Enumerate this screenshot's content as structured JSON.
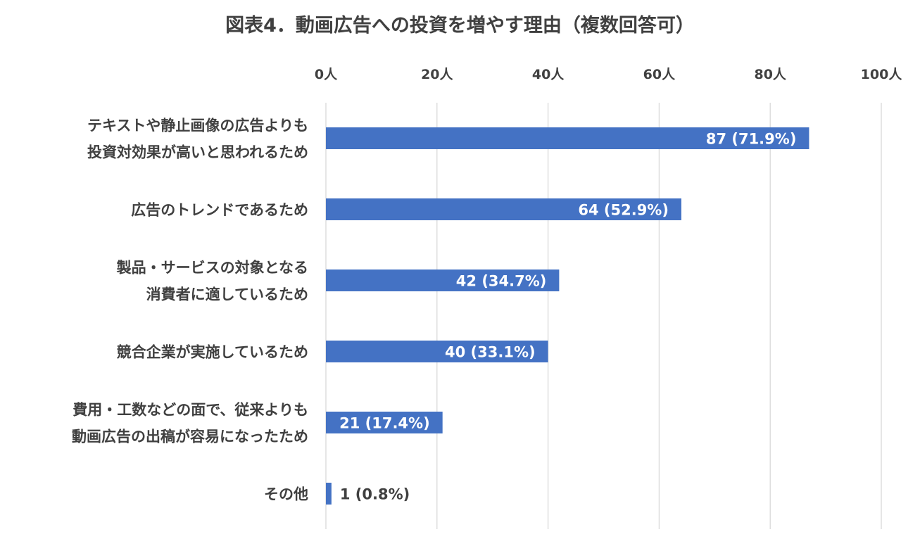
{
  "chart_data": {
    "type": "bar",
    "orientation": "horizontal",
    "title": "図表4．動画広告への投資を増やす理由（複数回答可）",
    "xlabel": "",
    "ylabel": "",
    "xlim": [
      0,
      100
    ],
    "x_tick_values": [
      0,
      20,
      40,
      60,
      80,
      100
    ],
    "x_tick_labels": [
      "0人",
      "20人",
      "40人",
      "60人",
      "80人",
      "100人"
    ],
    "x_axis_position": "top",
    "grid": true,
    "legend": false,
    "categories": [
      [
        "テキストや静止画像の広告よりも",
        "投資対効果が高いと思われるため"
      ],
      [
        "広告のトレンドであるため"
      ],
      [
        "製品・サービスの対象となる",
        "消費者に適しているため"
      ],
      [
        "競合企業が実施しているため"
      ],
      [
        "費用・工数などの面で、従来よりも",
        "動画広告の出稿が容易になったため"
      ],
      [
        "その他"
      ]
    ],
    "values": [
      87,
      64,
      42,
      40,
      21,
      1
    ],
    "data_labels": [
      "87 (71.9%)",
      "64 (52.9%)",
      "42 (34.7%)",
      "40 (33.1%)",
      "21 (17.4%)",
      "1 (0.8%)"
    ],
    "colors": {
      "bar": "#4472C4",
      "grid": "#D9D9D9",
      "text": "#404040",
      "label_inside": "#FFFFFF"
    }
  }
}
